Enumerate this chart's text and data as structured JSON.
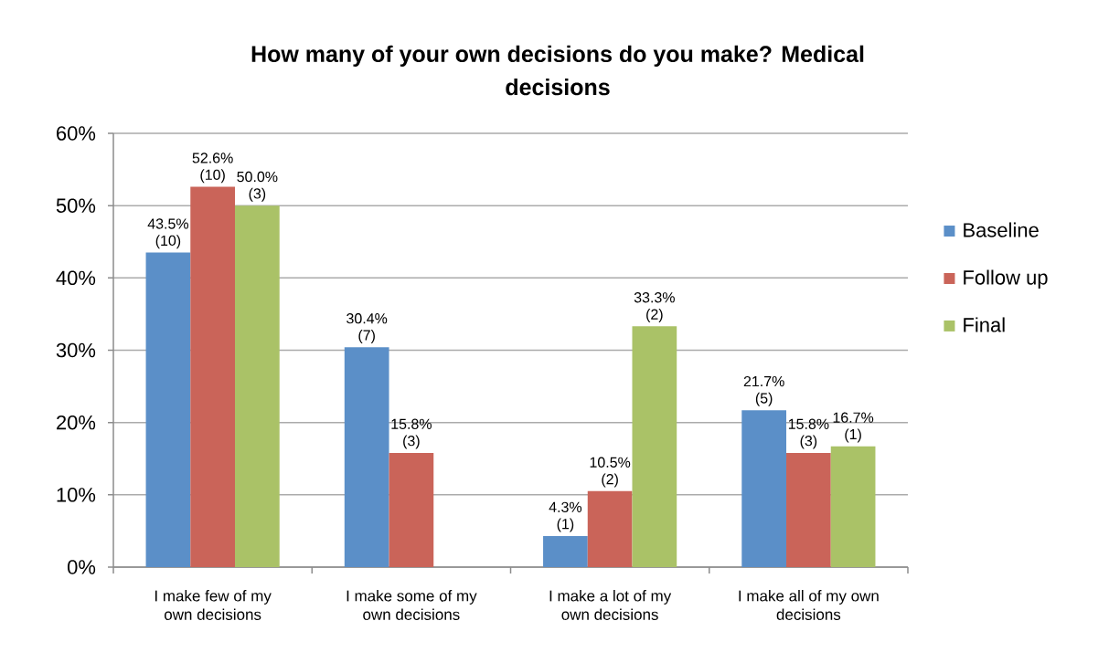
{
  "chart_data": {
    "type": "bar",
    "title": "How many of your own decisions do you make? Medical decisions",
    "categories": [
      "I make few of my own decisions",
      "I make some of my own decisions",
      "I make a lot of my own decisions",
      "I make all of my own decisions"
    ],
    "series": [
      {
        "name": "Baseline",
        "color": "#5b8fc8",
        "values": [
          43.5,
          30.4,
          4.3,
          21.7
        ],
        "value_labels": [
          "43.5% (10)",
          "30.4% (7)",
          "4.3% (1)",
          "21.7% (5)"
        ]
      },
      {
        "name": "Follow up",
        "color": "#ca6459",
        "values": [
          52.6,
          15.8,
          10.5,
          15.8
        ],
        "value_labels": [
          "52.6% (10)",
          "15.8% (3)",
          "10.5% (2)",
          "15.8% (3)"
        ]
      },
      {
        "name": "Final",
        "color": "#aac267",
        "values": [
          50.0,
          null,
          33.3,
          16.7
        ],
        "value_labels": [
          "50.0% (3)",
          null,
          "33.3% (2)",
          "16.7% (1)"
        ]
      }
    ],
    "ylim": [
      0,
      60
    ],
    "yticks": [
      {
        "value": 0,
        "label": "0%"
      },
      {
        "value": 10,
        "label": "10%"
      },
      {
        "value": 20,
        "label": "20%"
      },
      {
        "value": 30,
        "label": "30%"
      },
      {
        "value": 40,
        "label": "40%"
      },
      {
        "value": 50,
        "label": "50%"
      },
      {
        "value": 60,
        "label": "60%"
      }
    ],
    "grid": "y",
    "legend": "right"
  }
}
